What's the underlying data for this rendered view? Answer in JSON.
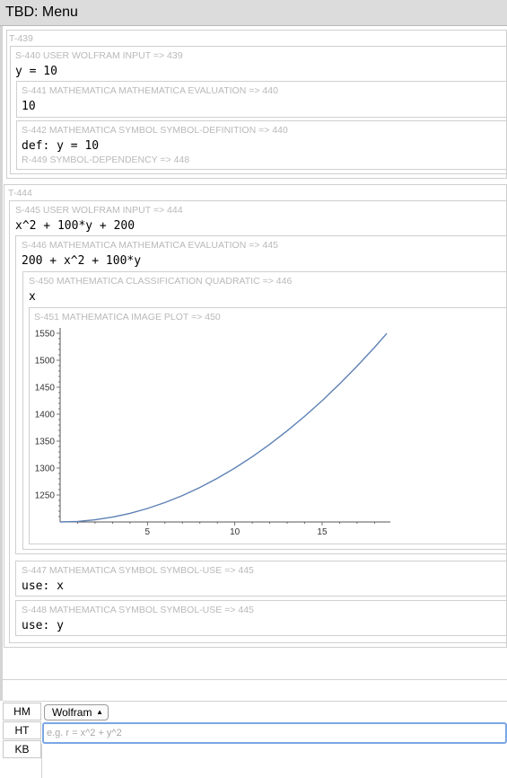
{
  "window": {
    "title": "TBD: Menu"
  },
  "threads": [
    {
      "label": "T-439",
      "user_input": {
        "label": "S-440 USER WOLFRAM INPUT => 439",
        "code": "y = 10"
      },
      "evaluation": {
        "label": "S-441 MATHEMATICA MATHEMATICA EVALUATION => 440",
        "code": "10"
      },
      "definition": {
        "label": "S-442 MATHEMATICA SYMBOL SYMBOL-DEFINITION => 440",
        "code": "def: y = 10",
        "dependency": "R-449 SYMBOL-DEPENDENCY => 448"
      }
    },
    {
      "label": "T-444",
      "user_input": {
        "label": "S-445 USER WOLFRAM INPUT => 444",
        "code": "x^2 + 100*y + 200"
      },
      "evaluation": {
        "label": "S-446 MATHEMATICA MATHEMATICA EVALUATION => 445",
        "code": "200 + x^2 + 100*y"
      },
      "classification": {
        "label": "S-450 MATHEMATICA CLASSIFICATION QUADRATIC => 446",
        "code": "x"
      },
      "plot": {
        "label": "S-451 MATHEMATICA IMAGE PLOT => 450"
      },
      "uses": [
        {
          "label": "S-447 MATHEMATICA SYMBOL SYMBOL-USE => 445",
          "code": "use: x"
        },
        {
          "label": "S-448 MATHEMATICA SYMBOL SYMBOL-USE => 445",
          "code": "use: y"
        }
      ]
    }
  ],
  "bottom": {
    "tabs": [
      "HM",
      "HT",
      "KB"
    ],
    "language_select": "Wolfram",
    "input_placeholder": "e.g. r = x^2 + y^2",
    "input_value": ""
  },
  "chart_data": {
    "type": "line",
    "title": "",
    "xlabel": "",
    "ylabel": "",
    "xlim": [
      0,
      18.7
    ],
    "ylim": [
      1200,
      1550
    ],
    "x_ticks": [
      5,
      10,
      15
    ],
    "y_ticks": [
      1250,
      1300,
      1350,
      1400,
      1450,
      1500,
      1550
    ],
    "function": "y = x^2 + 1200",
    "x": [
      0,
      1,
      2,
      3,
      4,
      5,
      6,
      7,
      8,
      9,
      10,
      11,
      12,
      13,
      14,
      15,
      16,
      17,
      18,
      18.7
    ],
    "y": [
      1200,
      1201,
      1204,
      1209,
      1216,
      1225,
      1236,
      1249,
      1264,
      1281,
      1300,
      1321,
      1344,
      1369,
      1396,
      1425,
      1456,
      1489,
      1524,
      1549.7
    ],
    "color": "#5e81b5",
    "grid": false
  }
}
